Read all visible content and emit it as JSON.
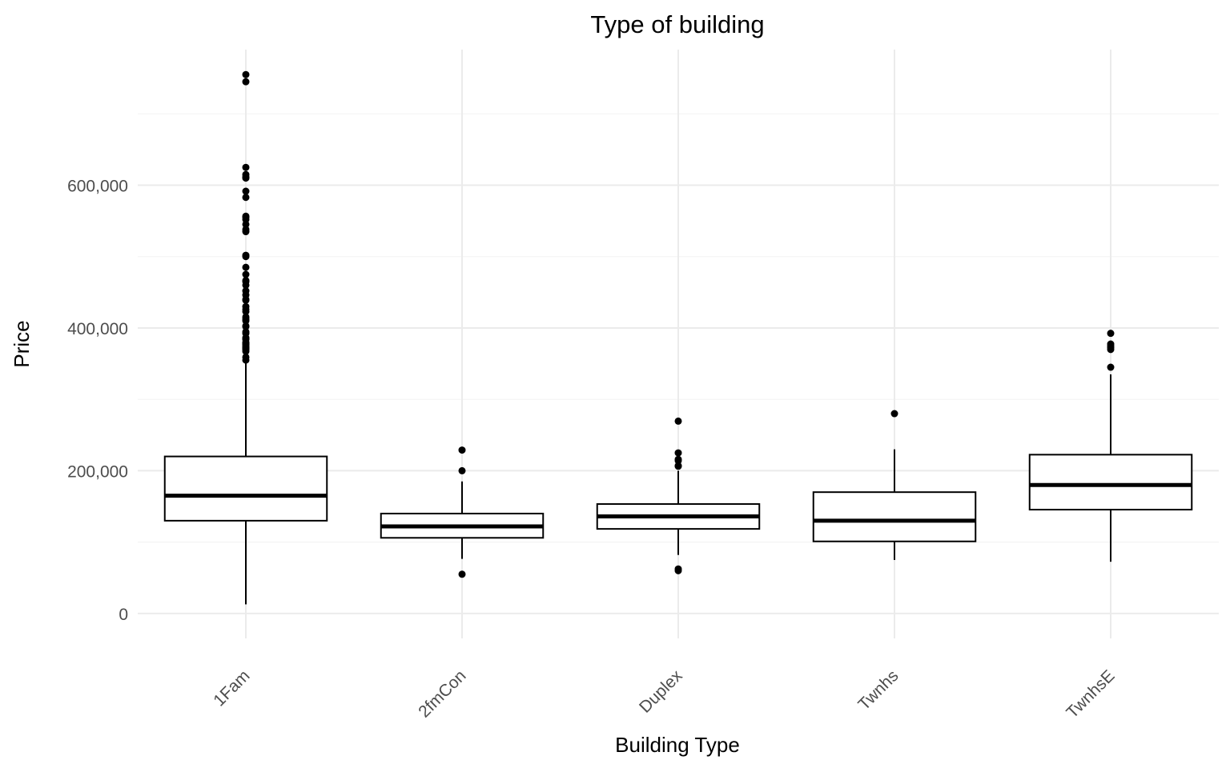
{
  "chart_data": {
    "type": "boxplot",
    "title": "Type of building",
    "xlabel": "Building Type",
    "ylabel": "Price",
    "categories": [
      "1Fam",
      "2fmCon",
      "Duplex",
      "Twnhs",
      "TwnhsE"
    ],
    "y_ticks": [
      0,
      200000,
      400000,
      600000
    ],
    "y_tick_labels": [
      "0",
      "200,000",
      "400,000",
      "600,000"
    ],
    "ylim": [
      -34900,
      790000
    ],
    "grid": "on",
    "legend": "none",
    "boxes": [
      {
        "category": "1Fam",
        "whisker_low": 12789,
        "q1": 130000,
        "median": 165000,
        "q3": 220000,
        "whisker_high": 355000,
        "outliers": [
          755000,
          745000,
          625000,
          615000,
          611657,
          610000,
          591587,
          582933,
          556581,
          555000,
          552000,
          545224,
          538000,
          535000,
          501837,
          500000,
          485000,
          475000,
          466500,
          465000,
          460000,
          451950,
          446261,
          440000,
          438780,
          430000,
          426000,
          423000,
          415298,
          412500,
          410000,
          402861,
          402000,
          394617,
          392500,
          386250,
          385000,
          383970,
          380000,
          378500,
          377500,
          377426,
          375000,
          372500,
          372402,
          370878,
          369900,
          367294,
          359100,
          355000
        ]
      },
      {
        "category": "2fmCon",
        "whisker_low": 76500,
        "q1": 106000,
        "median": 122000,
        "q3": 140000,
        "whisker_high": 185000,
        "outliers": [
          228950,
          200000,
          55000
        ]
      },
      {
        "category": "Duplex",
        "whisker_low": 82000,
        "q1": 118500,
        "median": 135980,
        "q3": 153337,
        "whisker_high": 200000,
        "outliers": [
          269500,
          225000,
          216000,
          214000,
          207000,
          206300,
          62383,
          60000
        ]
      },
      {
        "category": "Twnhs",
        "whisker_low": 75000,
        "q1": 101000,
        "median": 130000,
        "q3": 170000,
        "whisker_high": 230000,
        "outliers": [
          280000
        ]
      },
      {
        "category": "TwnhsE",
        "whisker_low": 72500,
        "q1": 145500,
        "median": 180000,
        "q3": 222500,
        "whisker_high": 335000,
        "outliers": [
          392500,
          377500,
          375000,
          372500,
          369900,
          345000
        ]
      }
    ]
  },
  "colors": {
    "background": "#ffffff",
    "grid_major": "#ebebeb",
    "grid_minor": "#f4f4f4",
    "box_stroke": "#000000",
    "box_fill": "#ffffff",
    "outlier": "#000000",
    "tick_text": "#4d4d4d",
    "title_text": "#000000"
  }
}
